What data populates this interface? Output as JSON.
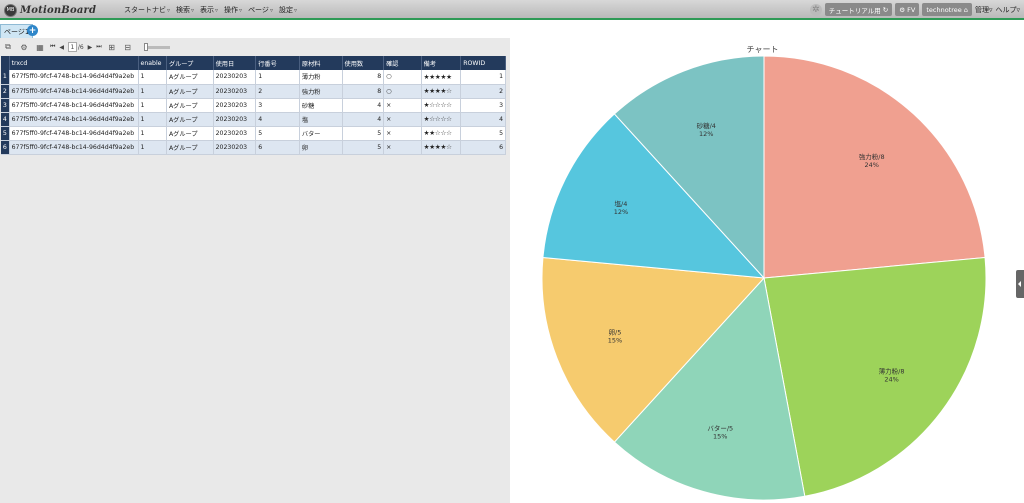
{
  "app": {
    "logo_badge": "MB",
    "logo_text": "MotionBoard"
  },
  "menu": [
    {
      "label": "スタートナビ"
    },
    {
      "label": "検索"
    },
    {
      "label": "表示"
    },
    {
      "label": "操作"
    },
    {
      "label": "ページ"
    },
    {
      "label": "設定"
    }
  ],
  "topright": {
    "tutorial": "チュートリアル用",
    "fv": "FV",
    "user": "technotree",
    "admin": "管理",
    "help": "ヘルプ"
  },
  "page_tab": {
    "label": "ページ1",
    "add": "+"
  },
  "toolbar": {
    "page_current": "1",
    "page_total": "/6"
  },
  "table": {
    "columns": [
      "trxcd",
      "enable",
      "グループ",
      "使用日",
      "行番号",
      "原材料",
      "使用数",
      "確認",
      "備考",
      "ROWID"
    ],
    "rows": [
      {
        "rn": "1",
        "trxcd": "677f5ff0-9fcf-4748-bc14-96d4d4f9a2eb",
        "enable": "1",
        "group": "Aグループ",
        "date": "20230203",
        "line": "1",
        "material": "薄力粉",
        "qty": "8",
        "check": "○",
        "note": "★★★★★",
        "rowid": "1"
      },
      {
        "rn": "2",
        "trxcd": "677f5ff0-9fcf-4748-bc14-96d4d4f9a2eb",
        "enable": "1",
        "group": "Aグループ",
        "date": "20230203",
        "line": "2",
        "material": "強力粉",
        "qty": "8",
        "check": "○",
        "note": "★★★★☆",
        "rowid": "2"
      },
      {
        "rn": "3",
        "trxcd": "677f5ff0-9fcf-4748-bc14-96d4d4f9a2eb",
        "enable": "1",
        "group": "Aグループ",
        "date": "20230203",
        "line": "3",
        "material": "砂糖",
        "qty": "4",
        "check": "×",
        "note": "★☆☆☆☆",
        "rowid": "3"
      },
      {
        "rn": "4",
        "trxcd": "677f5ff0-9fcf-4748-bc14-96d4d4f9a2eb",
        "enable": "1",
        "group": "Aグループ",
        "date": "20230203",
        "line": "4",
        "material": "塩",
        "qty": "4",
        "check": "×",
        "note": "★☆☆☆☆",
        "rowid": "4"
      },
      {
        "rn": "5",
        "trxcd": "677f5ff0-9fcf-4748-bc14-96d4d4f9a2eb",
        "enable": "1",
        "group": "Aグループ",
        "date": "20230203",
        "line": "5",
        "material": "バター",
        "qty": "5",
        "check": "×",
        "note": "★★☆☆☆",
        "rowid": "5"
      },
      {
        "rn": "6",
        "trxcd": "677f5ff0-9fcf-4748-bc14-96d4d4f9a2eb",
        "enable": "1",
        "group": "Aグループ",
        "date": "20230203",
        "line": "6",
        "material": "卵",
        "qty": "5",
        "check": "×",
        "note": "★★★★☆",
        "rowid": "6"
      }
    ]
  },
  "chart_data": {
    "type": "pie",
    "title": "チャート",
    "slices": [
      {
        "label": "強力粉/8",
        "pct": "24%",
        "value": 8,
        "color": "#f0a090"
      },
      {
        "label": "薄力粉/8",
        "pct": "24%",
        "value": 8,
        "color": "#9dd35a"
      },
      {
        "label": "バター/5",
        "pct": "15%",
        "value": 5,
        "color": "#8fd5b9"
      },
      {
        "label": "卵/5",
        "pct": "15%",
        "value": 5,
        "color": "#f6cb6e"
      },
      {
        "label": "塩/4",
        "pct": "12%",
        "value": 4,
        "color": "#56c6de"
      },
      {
        "label": "砂糖/4",
        "pct": "12%",
        "value": 4,
        "color": "#7cc3c3"
      }
    ]
  }
}
